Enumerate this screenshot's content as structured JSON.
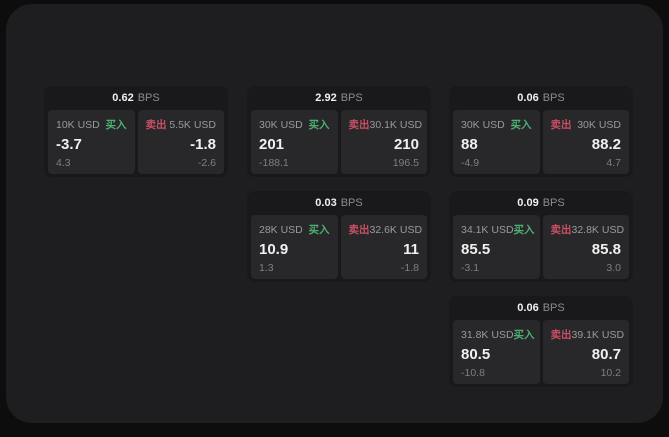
{
  "labels": {
    "bps": "BPS",
    "buy": "买入",
    "sell": "卖出"
  },
  "colors": {
    "buy_green": "#4caf72",
    "sell_red": "#c94f63",
    "panel_bg": "#1e1e20",
    "card_bg": "#19191b",
    "tile_bg": "#28282a",
    "page_bg": "#0d0d0e"
  },
  "cards": [
    {
      "spread_bps": "0.62",
      "buy": {
        "size": "10K USD",
        "price": "-3.7",
        "change": "4.3"
      },
      "sell": {
        "size": "5.5K USD",
        "price": "-1.8",
        "change": "-2.6"
      }
    },
    {
      "spread_bps": "2.92",
      "buy": {
        "size": "30K USD",
        "price": "201",
        "change": "-188.1"
      },
      "sell": {
        "size": "30.1K USD",
        "price": "210",
        "change": "196.5"
      }
    },
    {
      "spread_bps": "0.06",
      "buy": {
        "size": "30K USD",
        "price": "88",
        "change": "-4.9"
      },
      "sell": {
        "size": "30K USD",
        "price": "88.2",
        "change": "4.7"
      }
    },
    {
      "spread_bps": "0.03",
      "buy": {
        "size": "28K USD",
        "price": "10.9",
        "change": "1.3"
      },
      "sell": {
        "size": "32.6K USD",
        "price": "11",
        "change": "-1.8"
      }
    },
    {
      "spread_bps": "0.09",
      "buy": {
        "size": "34.1K USD",
        "price": "85.5",
        "change": "-3.1"
      },
      "sell": {
        "size": "32.8K USD",
        "price": "85.8",
        "change": "3.0"
      }
    },
    {
      "spread_bps": "0.06",
      "buy": {
        "size": "31.8K USD",
        "price": "80.5",
        "change": "-10.8"
      },
      "sell": {
        "size": "39.1K USD",
        "price": "80.7",
        "change": "10.2"
      }
    }
  ]
}
